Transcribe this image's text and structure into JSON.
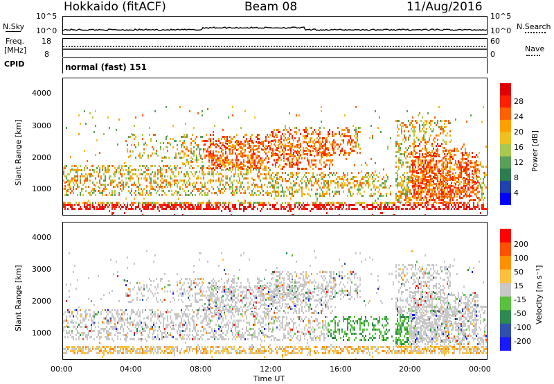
{
  "header": {
    "radar": "Hokkaido (fitACF)",
    "beam": "Beam 08",
    "date": "11/Aug/2016"
  },
  "sky_panel": {
    "left_label": "N.Sky",
    "right_label": "N.Search",
    "y_ticks_left": [
      "10^5",
      "10^0"
    ],
    "y_ticks_right": [
      "10^5",
      "10^0"
    ]
  },
  "freq_panel": {
    "left_label_1": "Freq.",
    "left_label_2": "[MHz]",
    "right_label": "Nave",
    "y_ticks_left": [
      "18",
      "8"
    ],
    "y_ticks_right": [
      "60",
      "0"
    ]
  },
  "cpid_panel": {
    "label": "CPID",
    "mode": "normal (fast) 151"
  },
  "power_panel": {
    "ylabel": "Slant Range [km]",
    "yticks": [
      "4000",
      "3000",
      "2000",
      "1000"
    ],
    "colorbar_label": "Power [dB]",
    "colorbar_ticks": [
      "28",
      "24",
      "20",
      "16",
      "12",
      "8",
      "4"
    ],
    "colors": [
      "#0000ff",
      "#2244aa",
      "#2e7d4f",
      "#5aa05a",
      "#a8c850",
      "#f0c020",
      "#ffa000",
      "#ff6000",
      "#ff2000",
      "#e00000"
    ]
  },
  "velocity_panel": {
    "ylabel": "Slant Range [km]",
    "yticks": [
      "4000",
      "3000",
      "2000",
      "1000"
    ],
    "colorbar_label": "Velocity [m s⁻¹]",
    "colorbar_ticks": [
      "200",
      "100",
      "50",
      "15",
      "-15",
      "-50",
      "-100",
      "-200"
    ],
    "colors": [
      "#1a1aff",
      "#3050b0",
      "#2e8a50",
      "#5ac040",
      "#c8c8c8",
      "#ffc040",
      "#ff9000",
      "#ff5000",
      "#ff0000"
    ]
  },
  "x_axis": {
    "ticks": [
      "00:00",
      "04:00",
      "08:00",
      "12:00",
      "16:00",
      "20:00",
      "00:00"
    ],
    "label": "Time UT"
  }
}
